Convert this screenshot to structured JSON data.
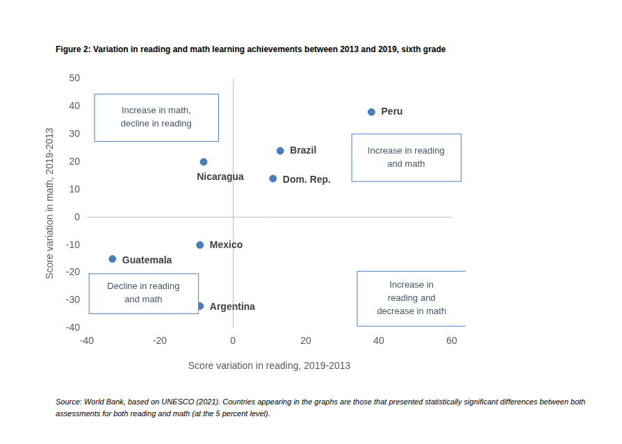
{
  "chart_data": {
    "type": "scatter",
    "title": "Figure 2: Variation in reading and math learning achievements between 2013 and 2019, sixth grade",
    "x_label": "Score variation in reading, 2019-2013",
    "y_label": "Score variation in math, 2019-2013",
    "labels": [
      "Peru",
      "Brazil",
      "Nicaragua",
      "Dom. Rep.",
      "Mexico",
      "Guatemala",
      "Argentina"
    ],
    "x": [
      38,
      13,
      -8,
      11,
      -9,
      -33,
      -9
    ],
    "values": [
      38,
      24,
      20,
      14,
      -10,
      -15,
      -32
    ],
    "color": "#4a7ebb",
    "marker": "circle",
    "xlim": [
      -40,
      60
    ],
    "xticks": [
      -40,
      -20,
      0,
      20,
      40,
      60
    ],
    "ylim": [
      -40,
      50
    ],
    "yticks": [
      -40,
      -30,
      -20,
      -10,
      0,
      10,
      20,
      30,
      40,
      50
    ],
    "grid": false,
    "data_labels": true,
    "annotations": [
      {
        "lines": [
          "Increase in math,",
          "decline in reading"
        ]
      },
      {
        "lines": [
          "Increase in reading",
          "and math"
        ]
      },
      {
        "lines": [
          "Decline in reading",
          "and math"
        ]
      },
      {
        "lines": [
          "Increase in",
          "reading and",
          "decrease in math"
        ]
      }
    ],
    "source": "Source: World Bank, based on UNESCO (2021). Countries appearing in the graphs are those that presented statistically significant differences between both assessments for both reading and math (at the 5 percent level)."
  }
}
